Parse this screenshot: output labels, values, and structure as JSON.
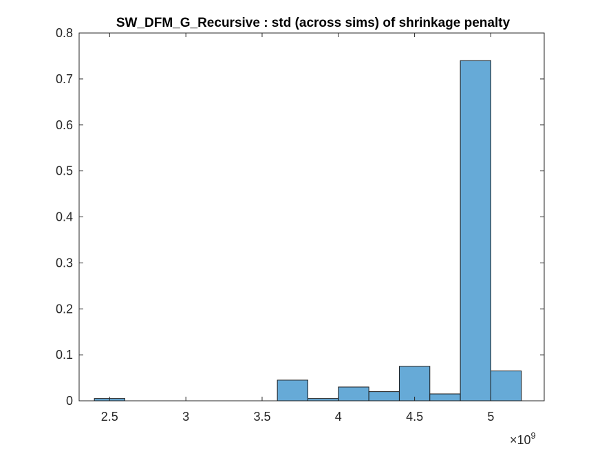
{
  "chart_data": {
    "type": "bar",
    "title": "SW_DFM_G_Recursive : std (across sims) of shrinkage penalty",
    "xlabel": "",
    "ylabel": "",
    "x_exponent_label": {
      "base": "×10",
      "exponent": "9"
    },
    "xlim": [
      2.3,
      5.35
    ],
    "ylim": [
      0,
      0.8
    ],
    "xticks": [
      2.5,
      3,
      3.5,
      4,
      4.5,
      5
    ],
    "xtick_labels": [
      "2.5",
      "3",
      "3.5",
      "4",
      "4.5",
      "5"
    ],
    "yticks": [
      0,
      0.1,
      0.2,
      0.3,
      0.4,
      0.5,
      0.6,
      0.7,
      0.8
    ],
    "ytick_labels": [
      "0",
      "0.1",
      "0.2",
      "0.3",
      "0.4",
      "0.5",
      "0.6",
      "0.7",
      "0.8"
    ],
    "bin_edges": [
      2.4,
      2.6,
      2.8,
      3.0,
      3.2,
      3.4,
      3.6,
      3.8,
      4.0,
      4.2,
      4.4,
      4.6,
      4.8,
      5.0,
      5.2
    ],
    "values": [
      0.005,
      0,
      0,
      0,
      0,
      0,
      0.045,
      0.005,
      0.03,
      0.02,
      0.075,
      0.015,
      0.74,
      0.065
    ],
    "colors": {
      "bar_fill": "#66aad7",
      "bar_edge": "#1a1a1a",
      "axis": "#262626"
    },
    "grid": false,
    "box": true
  }
}
